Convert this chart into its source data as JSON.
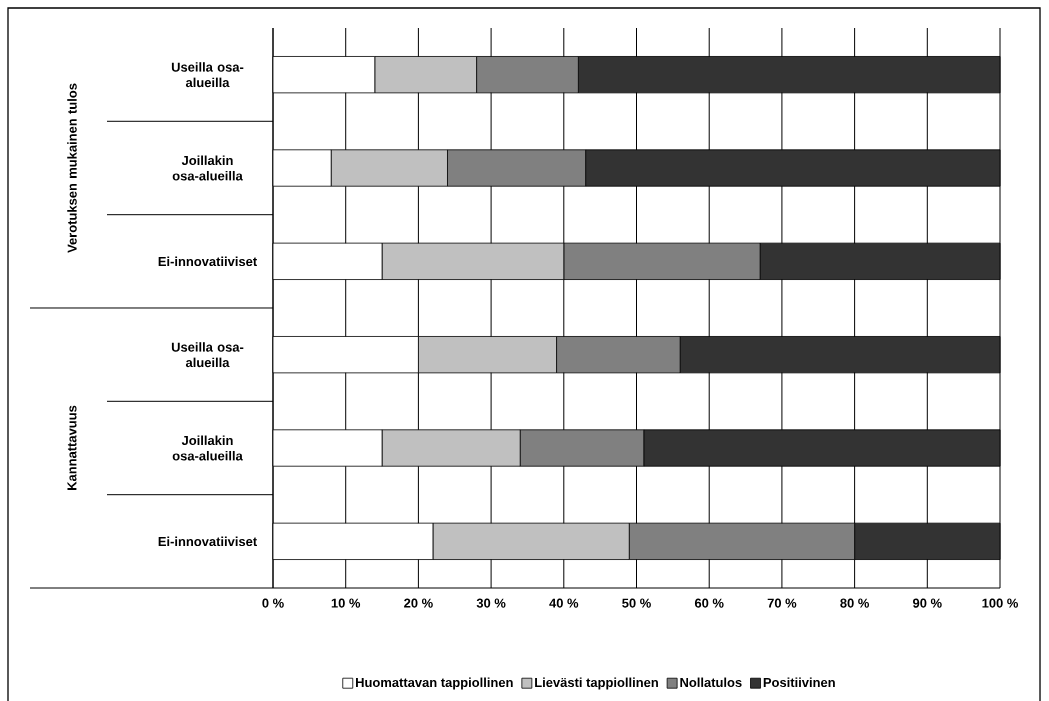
{
  "chart_data": {
    "type": "bar",
    "orientation": "horizontal",
    "stacked": true,
    "categories": [
      "Useilla osa-alueilla",
      "Joillakin osa-alueilla",
      "Ei-innovatiiviset",
      "Useilla osa-alueilla",
      "Joillakin osa-alueilla",
      "Ei-innovatiiviset"
    ],
    "series": [
      {
        "name": "Huomattavan tappiollinen",
        "color": "#ffffff",
        "values": [
          14,
          8,
          15,
          20,
          15,
          22
        ]
      },
      {
        "name": "Lievästi tappiollinen",
        "color": "#c0c0c0",
        "values": [
          14,
          16,
          25,
          19,
          19,
          27
        ]
      },
      {
        "name": "Nollatulos",
        "color": "#808080",
        "values": [
          14,
          19,
          27,
          17,
          17,
          31
        ]
      },
      {
        "name": "Positiivinen",
        "color": "#333333",
        "values": [
          58,
          57,
          33,
          44,
          49,
          20
        ]
      }
    ],
    "xlim": [
      0,
      100
    ],
    "xticks": [
      {
        "value": 0,
        "label": "0 %"
      },
      {
        "value": 10,
        "label": "10 %"
      },
      {
        "value": 20,
        "label": "20 %"
      },
      {
        "value": 30,
        "label": "30 %"
      },
      {
        "value": 40,
        "label": "40 %"
      },
      {
        "value": 50,
        "label": "50 %"
      },
      {
        "value": 60,
        "label": "60 %"
      },
      {
        "value": 70,
        "label": "70 %"
      },
      {
        "value": 80,
        "label": "80 %"
      },
      {
        "value": 90,
        "label": "90 %"
      },
      {
        "value": 100,
        "label": "100 %"
      }
    ],
    "annotations": [
      "Verotuksen mukainen tulos",
      "Kannattavuus"
    ],
    "grid": "x",
    "legend": "bottom"
  }
}
